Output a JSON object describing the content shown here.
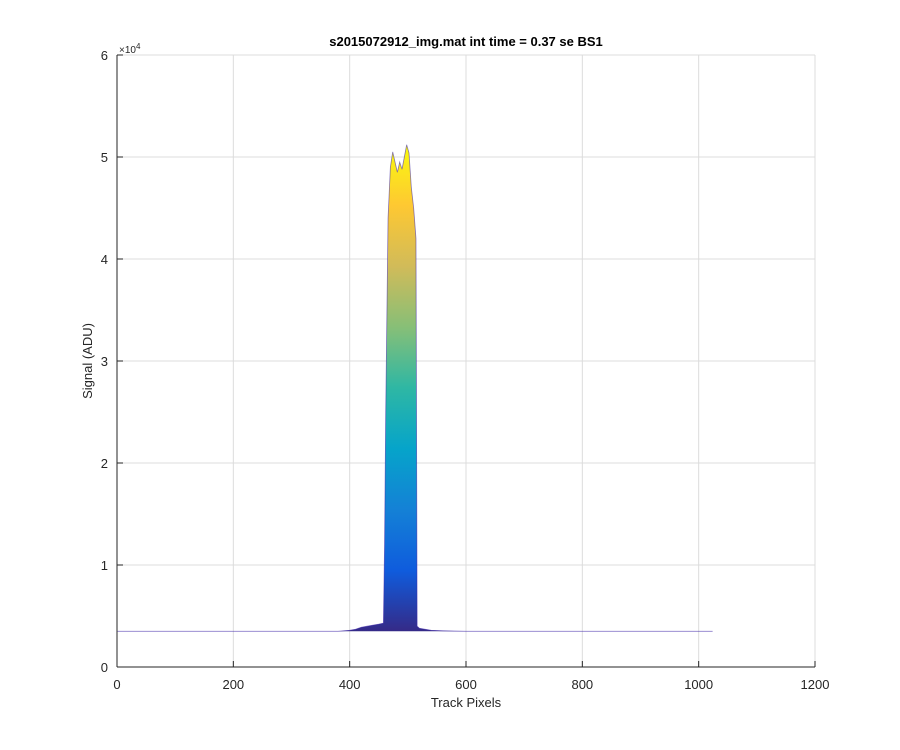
{
  "chart_data": {
    "type": "area",
    "title": "s2015072912_img.mat int time = 0.37 se   BS1",
    "xlabel": "Track Pixels",
    "ylabel": "Signal (ADU)",
    "xlim": [
      0,
      1200
    ],
    "ylim": [
      0,
      60000
    ],
    "y_multiplier_label": "×10",
    "y_multiplier_exponent": "4",
    "xticks": [
      0,
      200,
      400,
      600,
      800,
      1000,
      1200
    ],
    "xtick_labels": [
      "0",
      "200",
      "400",
      "600",
      "800",
      "1000",
      "1200"
    ],
    "yticks": [
      0,
      10000,
      20000,
      30000,
      40000,
      50000,
      60000
    ],
    "ytick_labels": [
      "0",
      "1",
      "2",
      "3",
      "4",
      "5",
      "6"
    ],
    "grid": true,
    "colormap": "parula",
    "colors": {
      "axis": "#262626",
      "grid": "#dcdcdc",
      "line": "#3e26a8",
      "parula_stops": [
        "#352a87",
        "#0f5cdd",
        "#1481d6",
        "#06a4ca",
        "#2eb7a4",
        "#87bf77",
        "#d1bb59",
        "#fec832",
        "#f9fb0e"
      ]
    },
    "series": [
      {
        "x": [
          1,
          100,
          200,
          300,
          350,
          380,
          400,
          410,
          420,
          430,
          440,
          450,
          458,
          460,
          462,
          466,
          470,
          474,
          478,
          482,
          486,
          490,
          494,
          498,
          502,
          506,
          510,
          514,
          516,
          520,
          530,
          540,
          560,
          600,
          700,
          800,
          900,
          1000,
          1024
        ],
        "y": [
          3500,
          3500,
          3500,
          3500,
          3500,
          3500,
          3600,
          3700,
          3900,
          4000,
          4100,
          4200,
          4300,
          12000,
          25000,
          44000,
          49000,
          50500,
          49500,
          48500,
          49500,
          48800,
          50000,
          51200,
          50400,
          47000,
          45000,
          42000,
          4000,
          3800,
          3700,
          3600,
          3550,
          3500,
          3500,
          3500,
          3500,
          3500,
          3500
        ]
      }
    ]
  }
}
